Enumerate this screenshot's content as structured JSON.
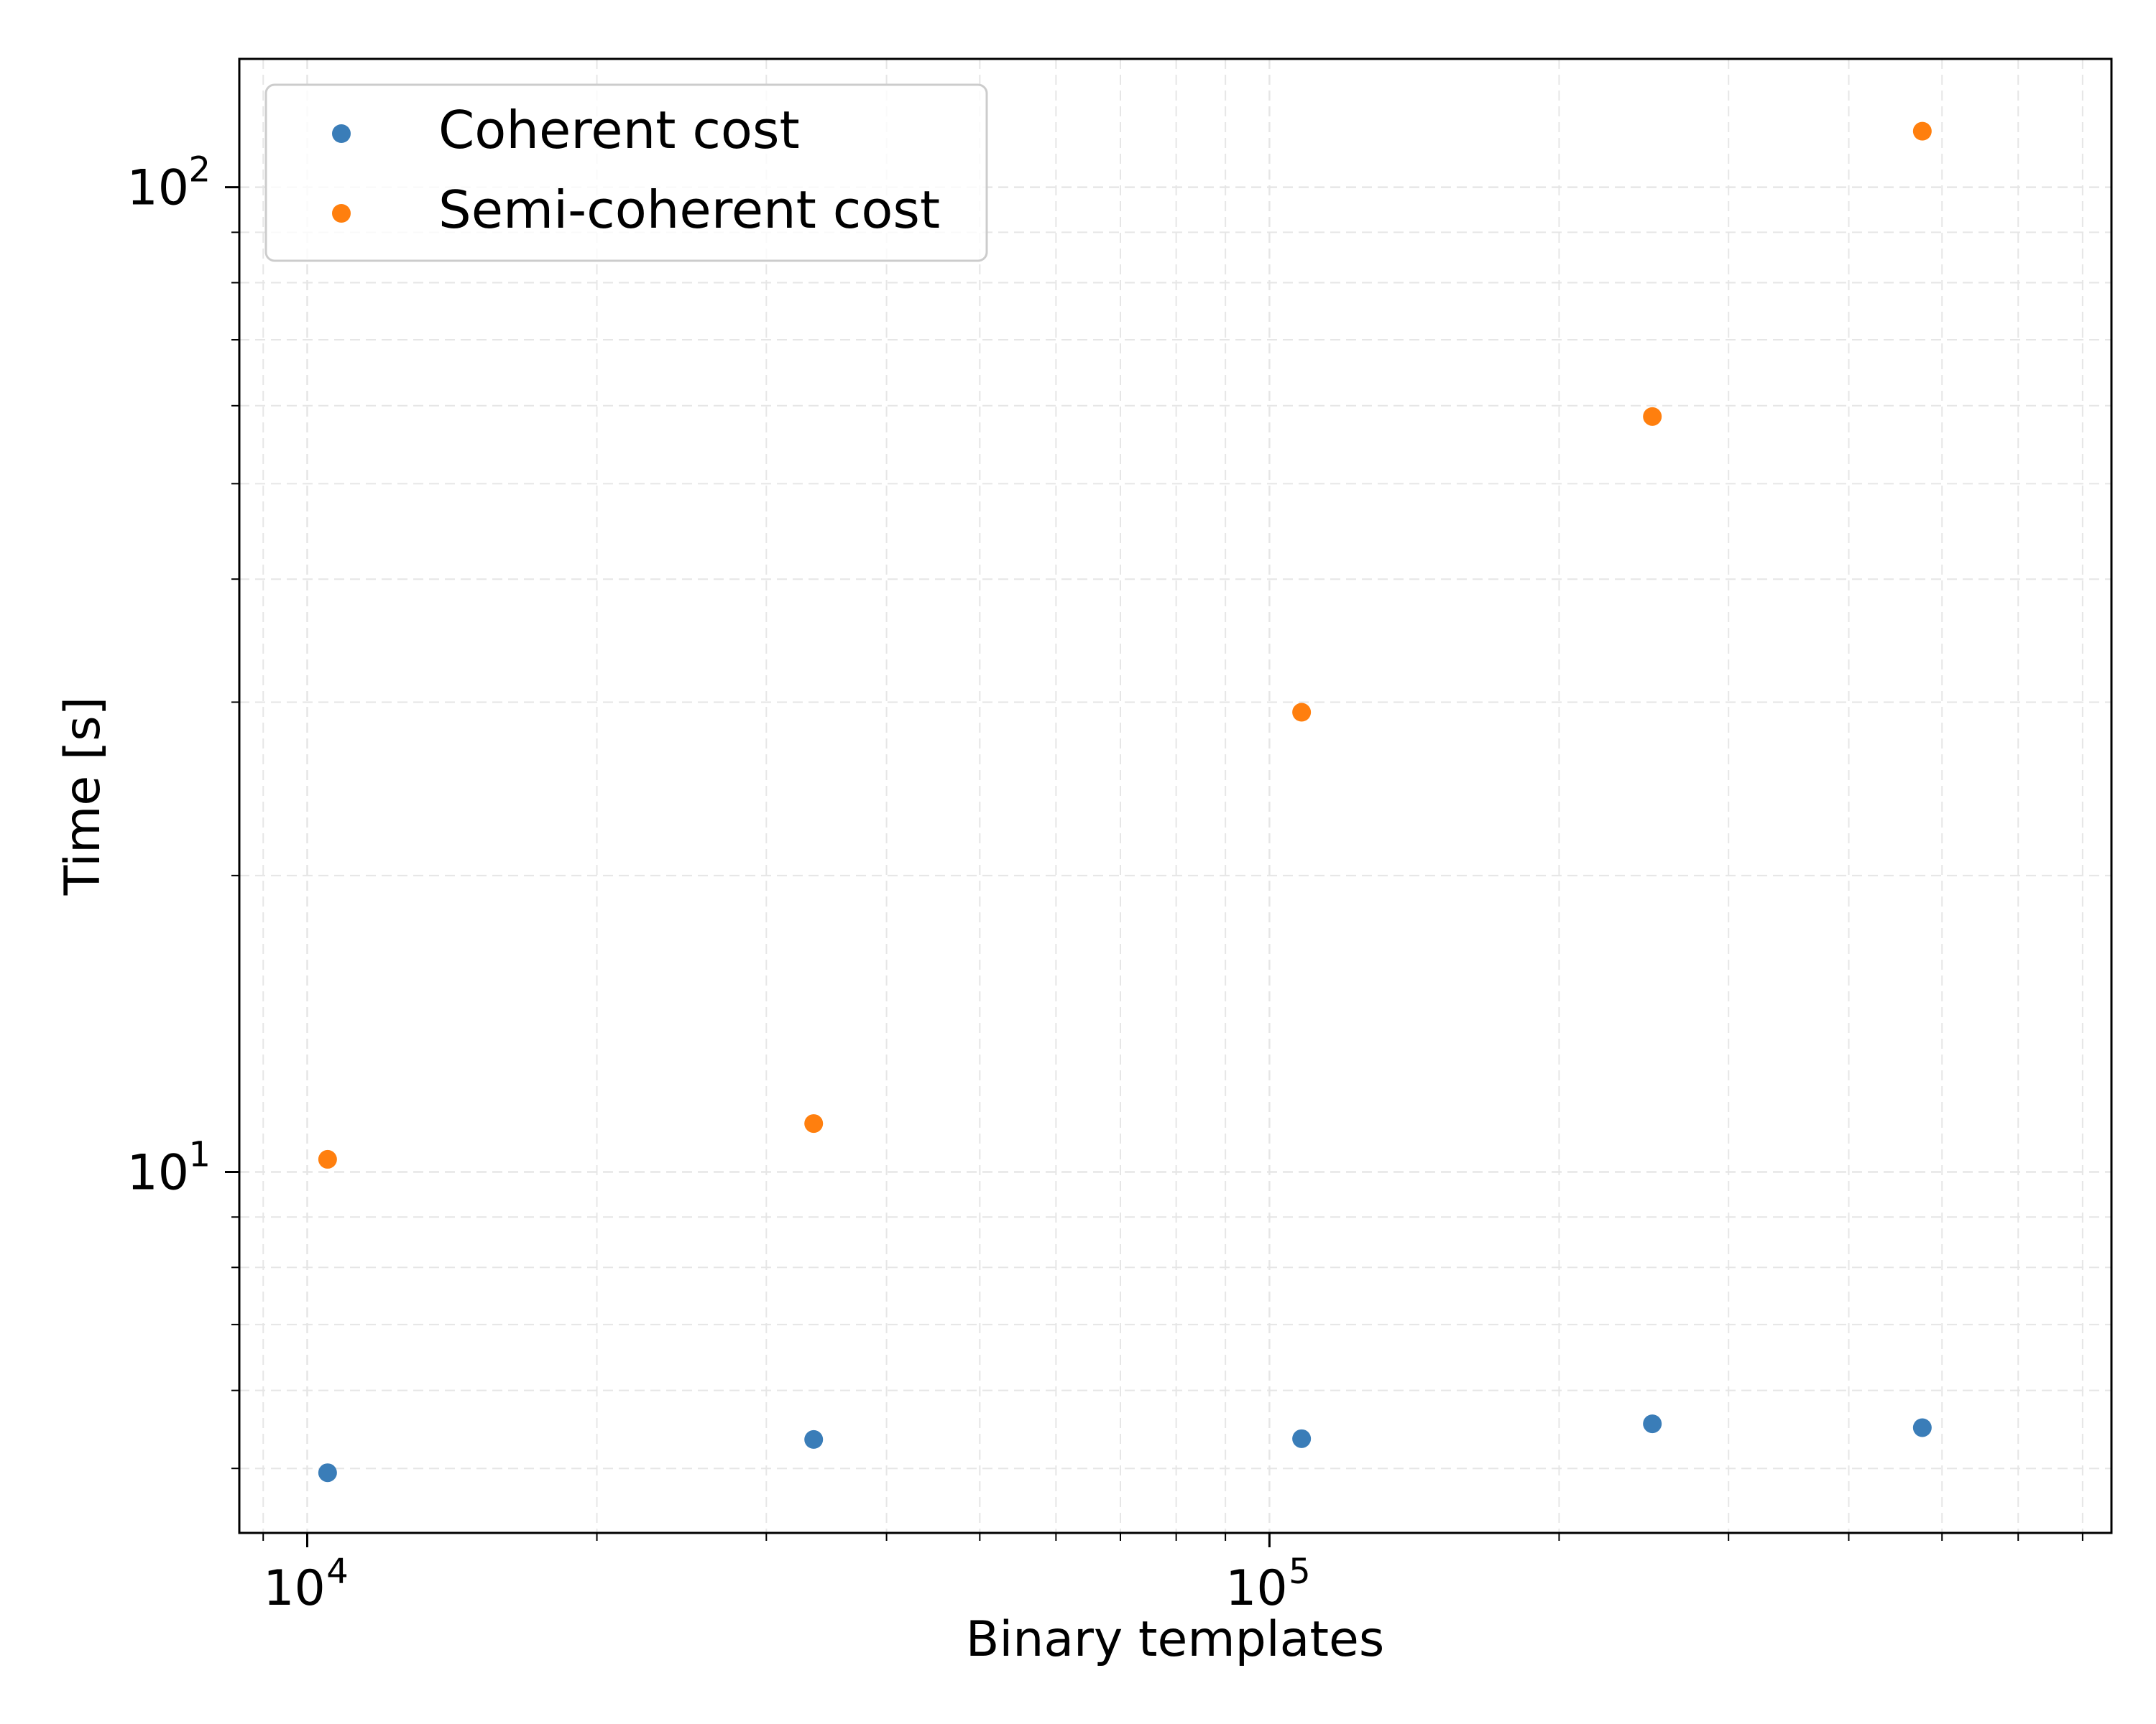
{
  "chart_data": {
    "type": "scatter",
    "title": "",
    "xlabel": "Binary templates",
    "ylabel": "Time [s]",
    "xscale": "log",
    "yscale": "log",
    "xlim": [
      8500,
      750000
    ],
    "ylim": [
      4.3,
      135
    ],
    "grid": true,
    "legend_position": "top-left",
    "x_ticks": [
      {
        "base": "10",
        "exp": "4",
        "value": 10000
      },
      {
        "base": "10",
        "exp": "5",
        "value": 100000
      }
    ],
    "y_ticks": [
      {
        "base": "10",
        "exp": "1",
        "value": 10
      },
      {
        "base": "10",
        "exp": "2",
        "value": 100
      }
    ],
    "series": [
      {
        "name": "Coherent cost",
        "color": "#3a7db8",
        "x": [
          10500,
          33600,
          108000,
          250000,
          477000
        ],
        "y": [
          4.95,
          5.35,
          5.36,
          5.55,
          5.5
        ]
      },
      {
        "name": "Semi-coherent cost",
        "color": "#ff7f0e",
        "x": [
          10500,
          33600,
          108000,
          250000,
          477000
        ],
        "y": [
          10.3,
          11.2,
          29.3,
          58.5,
          114.0
        ]
      }
    ]
  }
}
